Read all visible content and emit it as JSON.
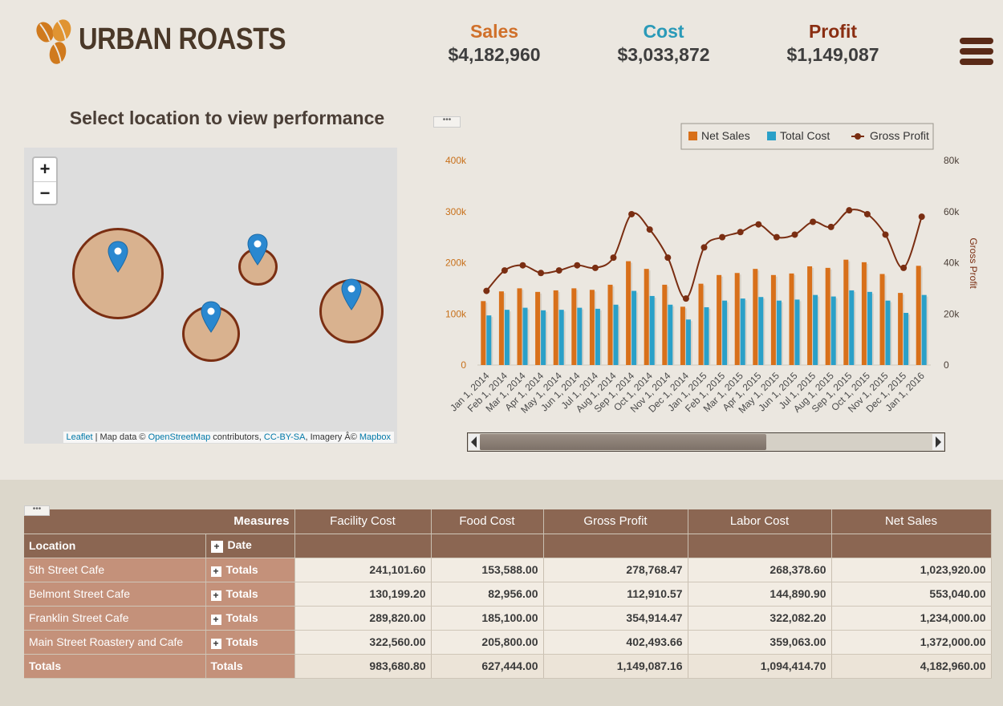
{
  "brand": {
    "name": "URBAN ROASTS",
    "colors": {
      "bean_primary": "#d07a1e",
      "bean_secondary": "#e09432",
      "text": "#4a3828"
    }
  },
  "kpis": [
    {
      "label": "Sales",
      "value": "$4,182,960",
      "color": "#d0702a"
    },
    {
      "label": "Cost",
      "value": "$3,033,872",
      "color": "#2a9ab8"
    },
    {
      "label": "Profit",
      "value": "$1,149,087",
      "color": "#8a2e12"
    }
  ],
  "menu": {
    "icon": "hamburger-menu-icon"
  },
  "map": {
    "title": "Select location to view performance",
    "zoom_in": "+",
    "zoom_out": "−",
    "attribution": {
      "leaflet": "Leaflet",
      "mid1": " | Map data © ",
      "osm": "OpenStreetMap",
      "mid2": " contributors, ",
      "license": "CC-BY-SA",
      "mid3": ", Imagery Â© ",
      "mapbox": "Mapbox"
    },
    "marker_icon": "map-pin-icon",
    "circle_color": "#d9b28f",
    "circle_stroke": "#7a2e12"
  },
  "chart_data": {
    "type": "bar",
    "legend": {
      "placement": "top-right",
      "entries": [
        "Net Sales",
        "Total Cost",
        "Gross Profit"
      ]
    },
    "categories": [
      "Jan 1, 2014",
      "Feb 1, 2014",
      "Mar 1, 2014",
      "Apr 1, 2014",
      "May 1, 2014",
      "Jun 1, 2014",
      "Jul 1, 2014",
      "Aug 1, 2014",
      "Sep 1, 2014",
      "Oct 1, 2014",
      "Nov 1, 2014",
      "Dec 1, 2014",
      "Jan 1, 2015",
      "Feb 1, 2015",
      "Mar 1, 2015",
      "Apr 1, 2015",
      "May 1, 2015",
      "Jun 1, 2015",
      "Jul 1, 2015",
      "Aug 1, 2015",
      "Sep 1, 2015",
      "Oct 1, 2015",
      "Nov 1, 2015",
      "Dec 1, 2015",
      "Jan 1, 2016"
    ],
    "series": [
      {
        "name": "Net Sales",
        "type": "bar",
        "axis": "left",
        "color": "#d8701a",
        "values": [
          125000,
          144000,
          150000,
          143000,
          146000,
          150000,
          147000,
          157000,
          203000,
          188000,
          157000,
          114000,
          159000,
          176000,
          180000,
          188000,
          176000,
          179000,
          193000,
          190000,
          206000,
          201000,
          178000,
          141000,
          194000
        ]
      },
      {
        "name": "Total Cost",
        "type": "bar",
        "axis": "left",
        "color": "#2aa0c8",
        "values": [
          97000,
          108000,
          112000,
          107000,
          108000,
          112000,
          110000,
          118000,
          145000,
          135000,
          118000,
          89000,
          113000,
          126000,
          130000,
          133000,
          126000,
          128000,
          137000,
          134000,
          146000,
          143000,
          126000,
          102000,
          137000
        ]
      },
      {
        "name": "Gross Profit",
        "type": "line",
        "axis": "right",
        "color": "#7a2e12",
        "values": [
          29000,
          37000,
          39000,
          36000,
          37000,
          39000,
          38000,
          42000,
          59000,
          53000,
          42000,
          26000,
          46000,
          50000,
          52000,
          55000,
          50000,
          51000,
          56000,
          54000,
          60500,
          59000,
          51000,
          38000,
          58000
        ]
      }
    ],
    "y_left": {
      "range": [
        0,
        400000
      ],
      "ticks": [
        "0",
        "100k",
        "200k",
        "300k",
        "400k"
      ],
      "tick_color": "#c8701a"
    },
    "y_right": {
      "range": [
        0,
        80000
      ],
      "ticks": [
        "0",
        "20k",
        "40k",
        "60k",
        "80k"
      ],
      "label": "Gross Profit"
    },
    "grid": false
  },
  "chart_ui": {
    "handle": "•••",
    "scrollbar_visible_fraction": 0.63
  },
  "table": {
    "handle": "•••",
    "measures_label": "Measures",
    "location_label": "Location",
    "date_label": "Date",
    "columns": [
      "Facility Cost",
      "Food Cost",
      "Gross Profit",
      "Labor Cost",
      "Net Sales"
    ],
    "rows": [
      {
        "location": "5th Street Cafe",
        "date": "Totals",
        "values": [
          "241,101.60",
          "153,588.00",
          "278,768.47",
          "268,378.60",
          "1,023,920.00"
        ]
      },
      {
        "location": "Belmont Street Cafe",
        "date": "Totals",
        "values": [
          "130,199.20",
          "82,956.00",
          "112,910.57",
          "144,890.90",
          "553,040.00"
        ]
      },
      {
        "location": "Franklin Street Cafe",
        "date": "Totals",
        "values": [
          "289,820.00",
          "185,100.00",
          "354,914.47",
          "322,082.20",
          "1,234,000.00"
        ]
      },
      {
        "location": "Main Street Roastery and Cafe",
        "date": "Totals",
        "values": [
          "322,560.00",
          "205,800.00",
          "402,493.66",
          "359,063.00",
          "1,372,000.00"
        ]
      }
    ],
    "totals": {
      "location": "Totals",
      "date": "Totals",
      "values": [
        "983,680.80",
        "627,444.00",
        "1,149,087.16",
        "1,094,414.70",
        "4,182,960.00"
      ]
    }
  }
}
